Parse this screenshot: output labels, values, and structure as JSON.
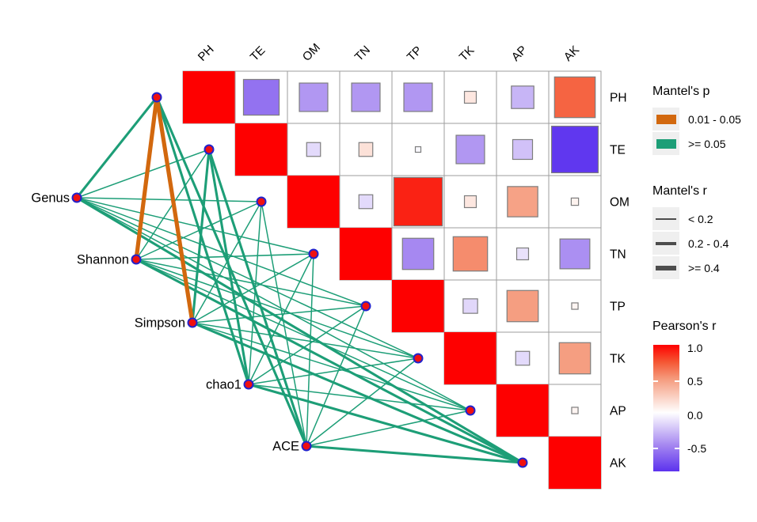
{
  "chart_data": {
    "type": "heatmap",
    "subtype": "mantel-correlation-network",
    "env_vars": [
      "PH",
      "TE",
      "OM",
      "TN",
      "TP",
      "TK",
      "AP",
      "AK"
    ],
    "diversity_vars": [
      "Genus",
      "Shannon",
      "Simpson",
      "chao1",
      "ACE"
    ],
    "pearson_r_matrix_upper": [
      [
        1,
        -0.58,
        -0.42,
        -0.42,
        -0.42,
        0.12,
        -0.3,
        0.7
      ],
      [
        null,
        1,
        -0.15,
        0.15,
        -0.03,
        -0.42,
        -0.25,
        -0.85
      ],
      [
        null,
        null,
        1,
        -0.15,
        0.9,
        0.12,
        0.46,
        0.06
      ],
      [
        null,
        null,
        null,
        1,
        -0.48,
        0.55,
        -0.12,
        -0.45
      ],
      [
        null,
        null,
        null,
        null,
        1,
        -0.16,
        0.48,
        0.05
      ],
      [
        null,
        null,
        null,
        null,
        null,
        1,
        -0.15,
        0.48
      ],
      [
        null,
        null,
        null,
        null,
        null,
        null,
        1,
        0.05
      ],
      [
        null,
        null,
        null,
        null,
        null,
        null,
        null,
        1
      ]
    ],
    "mantel_edges": [
      {
        "from": "Genus",
        "to": "PH",
        "p": ">= 0.05",
        "r": "0.2 - 0.4"
      },
      {
        "from": "Genus",
        "to": "TE",
        "p": ">= 0.05",
        "r": "< 0.2"
      },
      {
        "from": "Genus",
        "to": "OM",
        "p": ">= 0.05",
        "r": "< 0.2"
      },
      {
        "from": "Genus",
        "to": "TN",
        "p": ">= 0.05",
        "r": "< 0.2"
      },
      {
        "from": "Genus",
        "to": "TP",
        "p": ">= 0.05",
        "r": "< 0.2"
      },
      {
        "from": "Genus",
        "to": "TK",
        "p": ">= 0.05",
        "r": "< 0.2"
      },
      {
        "from": "Genus",
        "to": "AP",
        "p": ">= 0.05",
        "r": "< 0.2"
      },
      {
        "from": "Genus",
        "to": "AK",
        "p": ">= 0.05",
        "r": "0.2 - 0.4"
      },
      {
        "from": "Shannon",
        "to": "PH",
        "p": "0.01 - 0.05",
        "r": ">= 0.4"
      },
      {
        "from": "Shannon",
        "to": "TE",
        "p": ">= 0.05",
        "r": "< 0.2"
      },
      {
        "from": "Shannon",
        "to": "OM",
        "p": ">= 0.05",
        "r": "< 0.2"
      },
      {
        "from": "Shannon",
        "to": "TN",
        "p": ">= 0.05",
        "r": "< 0.2"
      },
      {
        "from": "Shannon",
        "to": "TP",
        "p": ">= 0.05",
        "r": "< 0.2"
      },
      {
        "from": "Shannon",
        "to": "TK",
        "p": ">= 0.05",
        "r": "< 0.2"
      },
      {
        "from": "Shannon",
        "to": "AP",
        "p": ">= 0.05",
        "r": "< 0.2"
      },
      {
        "from": "Shannon",
        "to": "AK",
        "p": ">= 0.05",
        "r": "0.2 - 0.4"
      },
      {
        "from": "Simpson",
        "to": "PH",
        "p": "0.01 - 0.05",
        "r": ">= 0.4"
      },
      {
        "from": "Simpson",
        "to": "TE",
        "p": ">= 0.05",
        "r": "0.2 - 0.4"
      },
      {
        "from": "Simpson",
        "to": "OM",
        "p": ">= 0.05",
        "r": "< 0.2"
      },
      {
        "from": "Simpson",
        "to": "TN",
        "p": ">= 0.05",
        "r": "< 0.2"
      },
      {
        "from": "Simpson",
        "to": "TP",
        "p": ">= 0.05",
        "r": "< 0.2"
      },
      {
        "from": "Simpson",
        "to": "TK",
        "p": ">= 0.05",
        "r": "< 0.2"
      },
      {
        "from": "Simpson",
        "to": "AP",
        "p": ">= 0.05",
        "r": "< 0.2"
      },
      {
        "from": "Simpson",
        "to": "AK",
        "p": ">= 0.05",
        "r": "0.2 - 0.4"
      },
      {
        "from": "chao1",
        "to": "PH",
        "p": ">= 0.05",
        "r": "0.2 - 0.4"
      },
      {
        "from": "chao1",
        "to": "TE",
        "p": ">= 0.05",
        "r": "0.2 - 0.4"
      },
      {
        "from": "chao1",
        "to": "OM",
        "p": ">= 0.05",
        "r": "< 0.2"
      },
      {
        "from": "chao1",
        "to": "TN",
        "p": ">= 0.05",
        "r": "< 0.2"
      },
      {
        "from": "chao1",
        "to": "TP",
        "p": ">= 0.05",
        "r": "< 0.2"
      },
      {
        "from": "chao1",
        "to": "TK",
        "p": ">= 0.05",
        "r": "< 0.2"
      },
      {
        "from": "chao1",
        "to": "AP",
        "p": ">= 0.05",
        "r": "< 0.2"
      },
      {
        "from": "chao1",
        "to": "AK",
        "p": ">= 0.05",
        "r": "0.2 - 0.4"
      },
      {
        "from": "ACE",
        "to": "PH",
        "p": ">= 0.05",
        "r": "0.2 - 0.4"
      },
      {
        "from": "ACE",
        "to": "TE",
        "p": ">= 0.05",
        "r": "0.2 - 0.4"
      },
      {
        "from": "ACE",
        "to": "OM",
        "p": ">= 0.05",
        "r": "< 0.2"
      },
      {
        "from": "ACE",
        "to": "TN",
        "p": ">= 0.05",
        "r": "< 0.2"
      },
      {
        "from": "ACE",
        "to": "TP",
        "p": ">= 0.05",
        "r": "< 0.2"
      },
      {
        "from": "ACE",
        "to": "TK",
        "p": ">= 0.05",
        "r": "< 0.2"
      },
      {
        "from": "ACE",
        "to": "AP",
        "p": ">= 0.05",
        "r": "< 0.2"
      },
      {
        "from": "ACE",
        "to": "AK",
        "p": ">= 0.05",
        "r": "0.2 - 0.4"
      }
    ],
    "color_scale_stops": [
      {
        "value": -1.0,
        "color": "#4316ee"
      },
      {
        "value": -0.5,
        "color": "#a283f0"
      },
      {
        "value": 0.0,
        "color": "#ffffff"
      },
      {
        "value": 0.5,
        "color": "#f59a7c"
      },
      {
        "value": 0.75,
        "color": "#f55633"
      },
      {
        "value": 1.0,
        "color": "#fe0000"
      }
    ]
  },
  "legends": {
    "mantel_p": {
      "title": "Mantel's p",
      "items": [
        {
          "label": "0.01 - 0.05",
          "color": "#d2680e"
        },
        {
          "label": ">= 0.05",
          "color": "#1d9e77"
        }
      ]
    },
    "mantel_r": {
      "title": "Mantel's r",
      "items": [
        {
          "label": "< 0.2"
        },
        {
          "label": "0.2 - 0.4"
        },
        {
          "label": ">= 0.4"
        }
      ]
    },
    "pearson_r": {
      "title": "Pearson's r",
      "ticks": [
        "1.0",
        "0.5",
        "0.0",
        "-0.5"
      ]
    }
  },
  "colors": {
    "sig_orange": "#d2680e",
    "nonsig_green": "#1d9e77",
    "node_fill": "#f01010",
    "node_ring": "#2222cc",
    "diagonal_red": "#fe0000",
    "cell_border": "#9e9e9e",
    "square_border": "#7d7d7d"
  }
}
